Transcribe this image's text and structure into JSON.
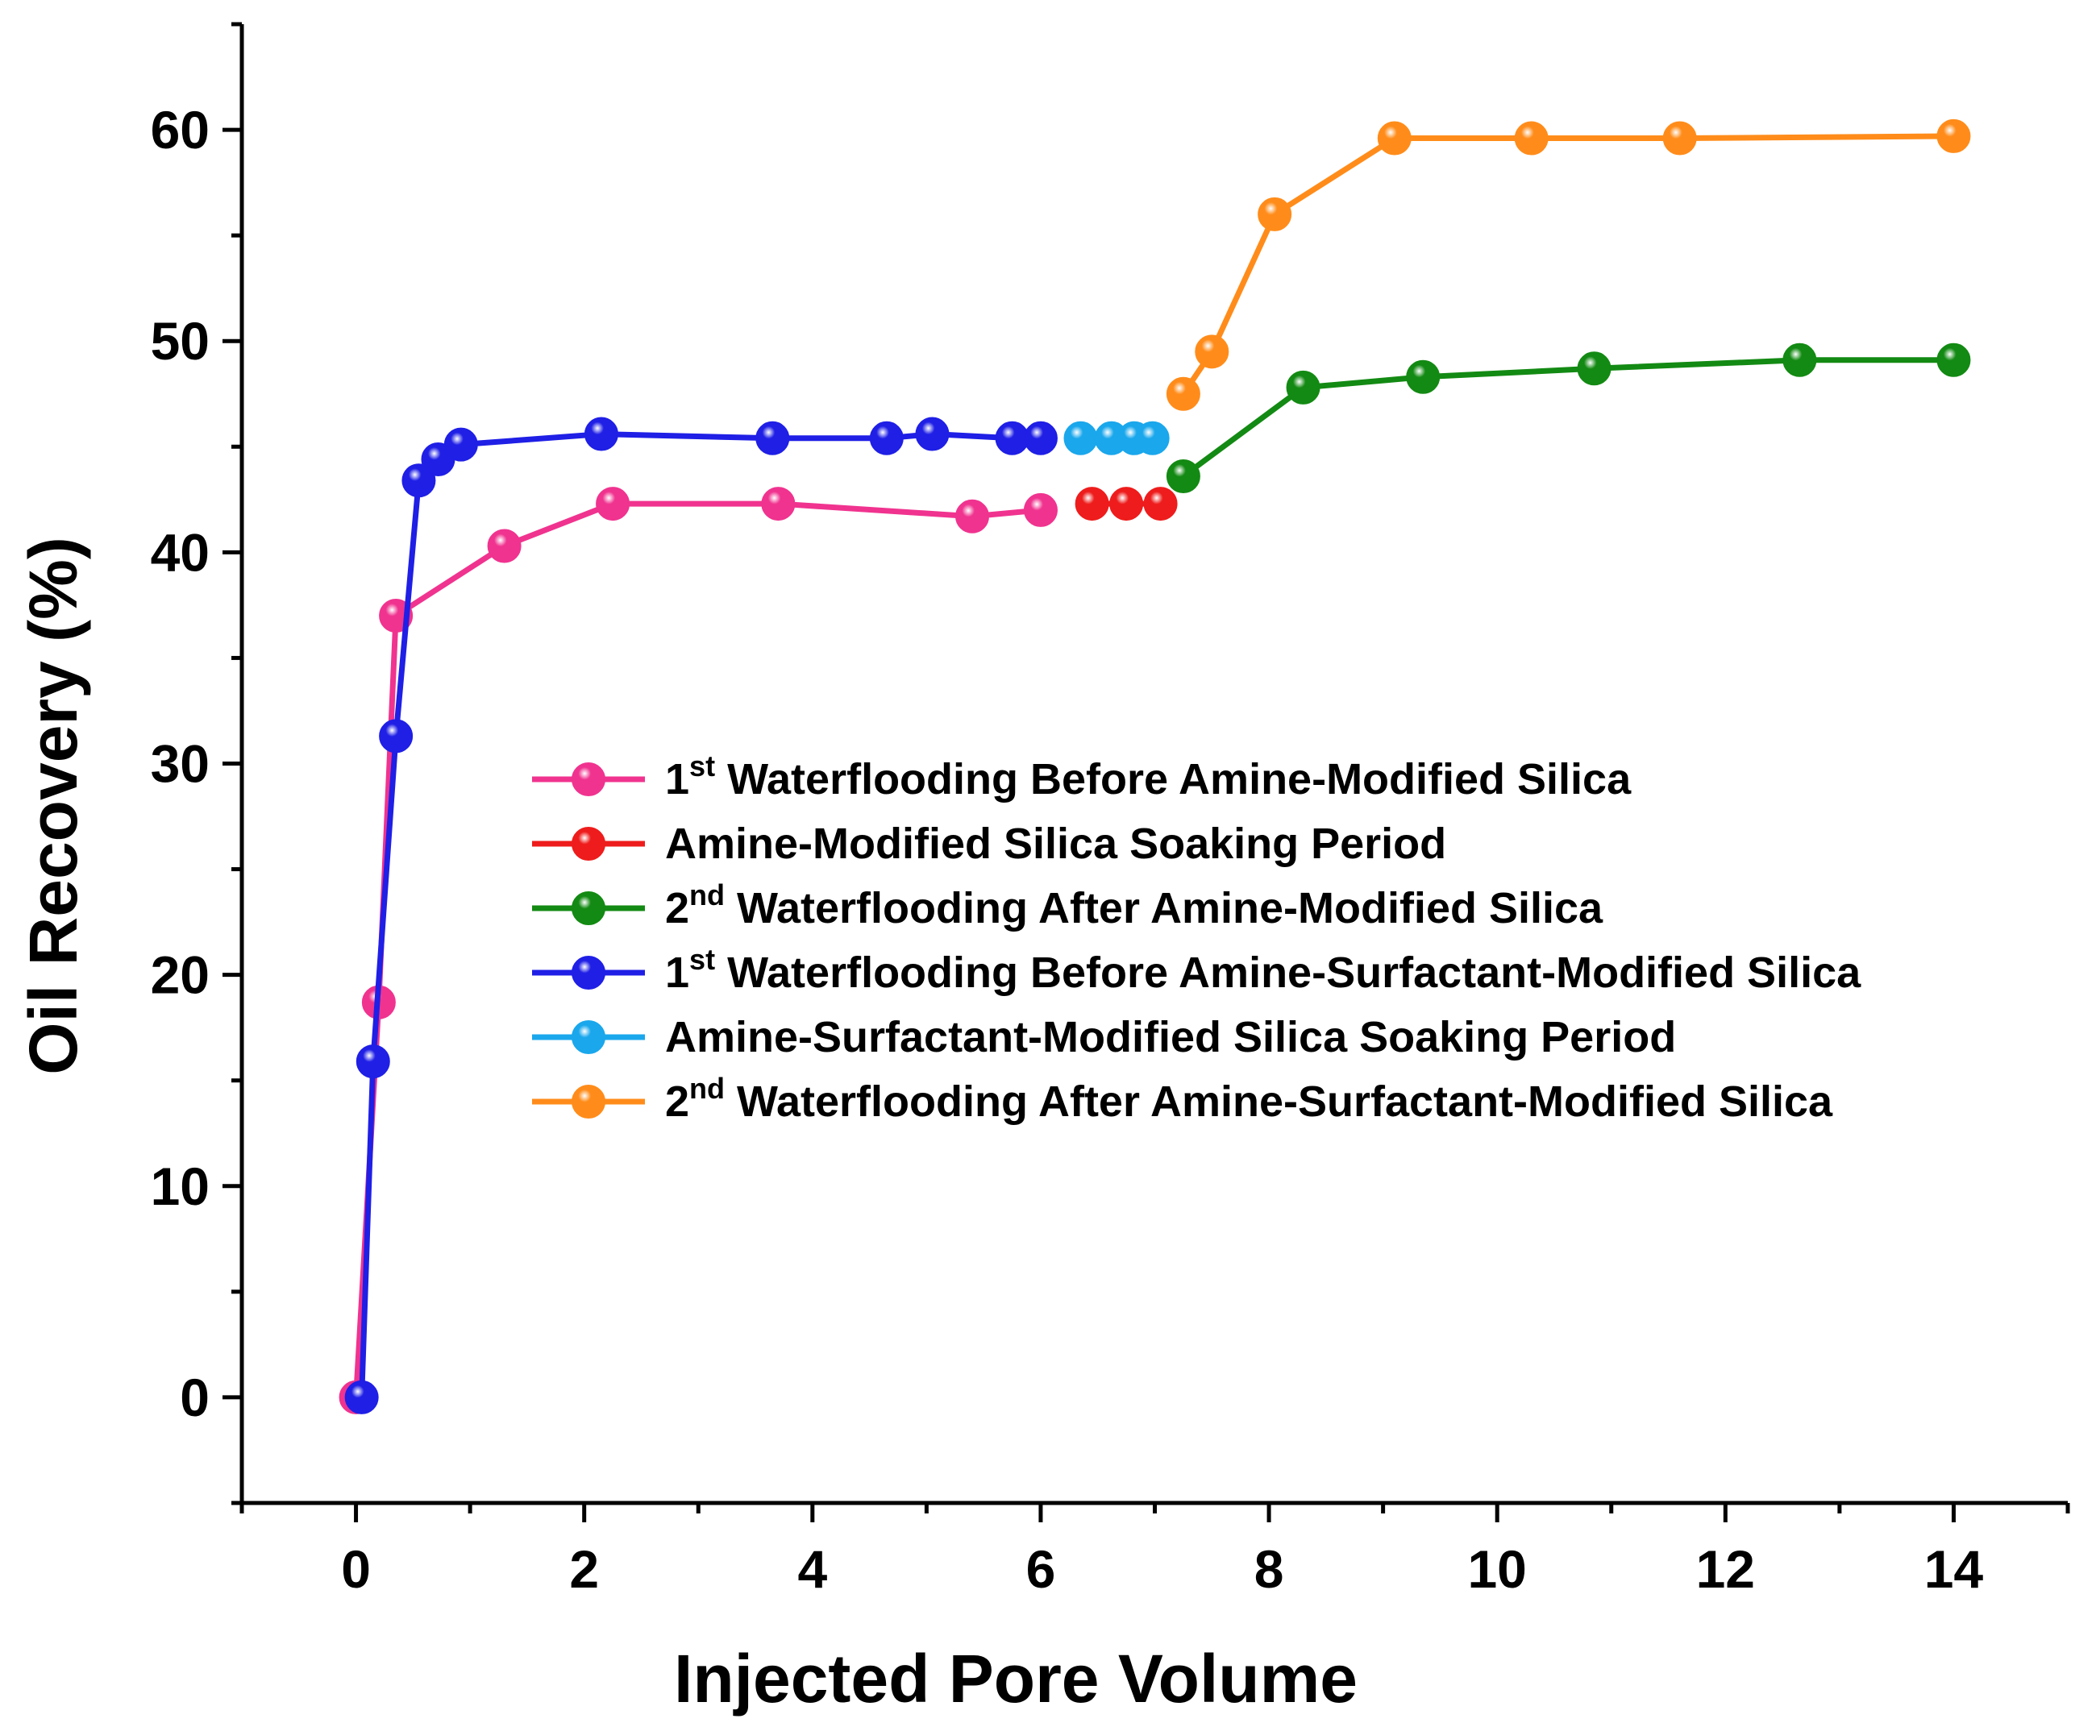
{
  "chart_data": {
    "type": "line",
    "title": "",
    "xlabel": "Injected Pore Volume",
    "ylabel": "Oil Recovery (%)",
    "xlim": [
      -1,
      15
    ],
    "ylim": [
      -5,
      65
    ],
    "x_ticks": [
      0,
      2,
      4,
      6,
      8,
      10,
      12,
      14
    ],
    "y_ticks": [
      0,
      10,
      20,
      30,
      40,
      50,
      60
    ],
    "grid": false,
    "legend_position": "center-right",
    "series": [
      {
        "name": "1st Waterflooding Before Amine-Modified Silica",
        "legend_main_pre": "1",
        "legend_sup": "st",
        "legend_main_post": " Waterflooding Before Amine-Modified Silica",
        "color": "#f0338f",
        "x": [
          0,
          0.2,
          0.35,
          1.3,
          2.25,
          3.7,
          5.4,
          6.0
        ],
        "y": [
          0,
          18.7,
          37.0,
          40.3,
          42.3,
          42.3,
          41.7,
          42.0
        ]
      },
      {
        "name": "Amine-Modified Silica Soaking Period",
        "legend_main_pre": "Amine-Modified Silica Soaking Period",
        "legend_sup": "",
        "legend_main_post": "",
        "color": "#ee1c1c",
        "x": [
          6.45,
          6.75,
          7.05
        ],
        "y": [
          42.3,
          42.3,
          42.3
        ]
      },
      {
        "name": "2nd Waterflooding After Amine-Modified Silica",
        "legend_main_pre": "2",
        "legend_sup": "nd",
        "legend_main_post": " Waterflooding After Amine-Modified Silica",
        "color": "#138a13",
        "x": [
          7.25,
          8.3,
          9.35,
          10.85,
          12.65,
          14.0
        ],
        "y": [
          43.6,
          47.8,
          48.3,
          48.7,
          49.1,
          49.1
        ]
      },
      {
        "name": "1st Waterflooding Before Amine-Surfactant-Modified Silica",
        "legend_main_pre": "1",
        "legend_sup": "st",
        "legend_main_post": " Waterflooding Before Amine-Surfactant-Modified Silica",
        "color": "#1f1fe6",
        "x": [
          0.05,
          0.15,
          0.35,
          0.55,
          0.72,
          0.92,
          2.15,
          3.65,
          4.65,
          5.05,
          5.75,
          6.0
        ],
        "y": [
          0,
          15.9,
          31.3,
          43.4,
          44.4,
          45.1,
          45.6,
          45.4,
          45.4,
          45.6,
          45.4,
          45.4
        ]
      },
      {
        "name": "Amine-Surfactant-Modified Silica Soaking Period",
        "legend_main_pre": "Amine-Surfactant-Modified Silica Soaking Period",
        "legend_sup": "",
        "legend_main_post": "",
        "color": "#1aa7ec",
        "x": [
          6.35,
          6.62,
          6.82,
          6.98
        ],
        "y": [
          45.4,
          45.4,
          45.4,
          45.4
        ]
      },
      {
        "name": "2nd Waterflooding After Amine-Surfactant-Modified Silica",
        "legend_main_pre": "2",
        "legend_sup": "nd",
        "legend_main_post": " Waterflooding After Amine-Surfactant-Modified Silica",
        "color": "#ff8c1a",
        "x": [
          7.25,
          7.5,
          8.05,
          9.1,
          10.3,
          11.6,
          14.0
        ],
        "y": [
          47.5,
          49.5,
          56.0,
          59.6,
          59.6,
          59.6,
          59.7
        ]
      }
    ]
  }
}
